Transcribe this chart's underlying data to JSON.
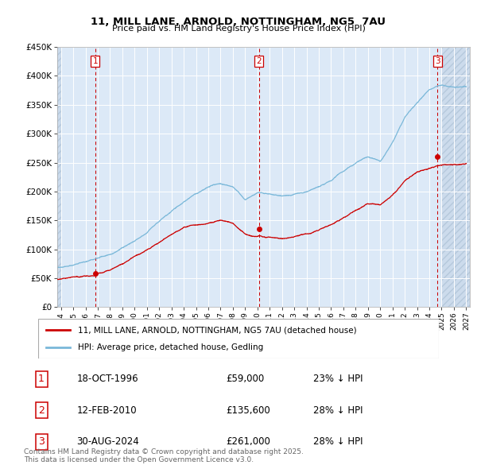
{
  "title": "11, MILL LANE, ARNOLD, NOTTINGHAM, NG5  7AU",
  "subtitle": "Price paid vs. HM Land Registry's House Price Index (HPI)",
  "bg_color": "#dce9f7",
  "hpi_color": "#7ab8d9",
  "sale_color": "#cc0000",
  "ylim": [
    0,
    450000
  ],
  "yticks": [
    0,
    50000,
    100000,
    150000,
    200000,
    250000,
    300000,
    350000,
    400000,
    450000
  ],
  "ytick_labels": [
    "£0",
    "£50K",
    "£100K",
    "£150K",
    "£200K",
    "£250K",
    "£300K",
    "£350K",
    "£400K",
    "£450K"
  ],
  "xlim_start": 1993.7,
  "xlim_end": 2027.3,
  "xtick_years": [
    1994,
    1995,
    1996,
    1997,
    1998,
    1999,
    2000,
    2001,
    2002,
    2003,
    2004,
    2005,
    2006,
    2007,
    2008,
    2009,
    2010,
    2011,
    2012,
    2013,
    2014,
    2015,
    2016,
    2017,
    2018,
    2019,
    2020,
    2021,
    2022,
    2023,
    2024,
    2025,
    2026,
    2027
  ],
  "sale_dates": [
    1996.79,
    2010.12,
    2024.66
  ],
  "sale_prices": [
    59000,
    135600,
    261000
  ],
  "sale_labels": [
    "1",
    "2",
    "3"
  ],
  "sale_date_strs": [
    "18-OCT-1996",
    "12-FEB-2010",
    "30-AUG-2024"
  ],
  "sale_price_strs": [
    "£59,000",
    "£135,600",
    "£261,000"
  ],
  "sale_hpi_strs": [
    "23% ↓ HPI",
    "28% ↓ HPI",
    "28% ↓ HPI"
  ],
  "legend_sale_label": "11, MILL LANE, ARNOLD, NOTTINGHAM, NG5 7AU (detached house)",
  "legend_hpi_label": "HPI: Average price, detached house, Gedling",
  "footer": "Contains HM Land Registry data © Crown copyright and database right 2025.\nThis data is licensed under the Open Government Licence v3.0."
}
